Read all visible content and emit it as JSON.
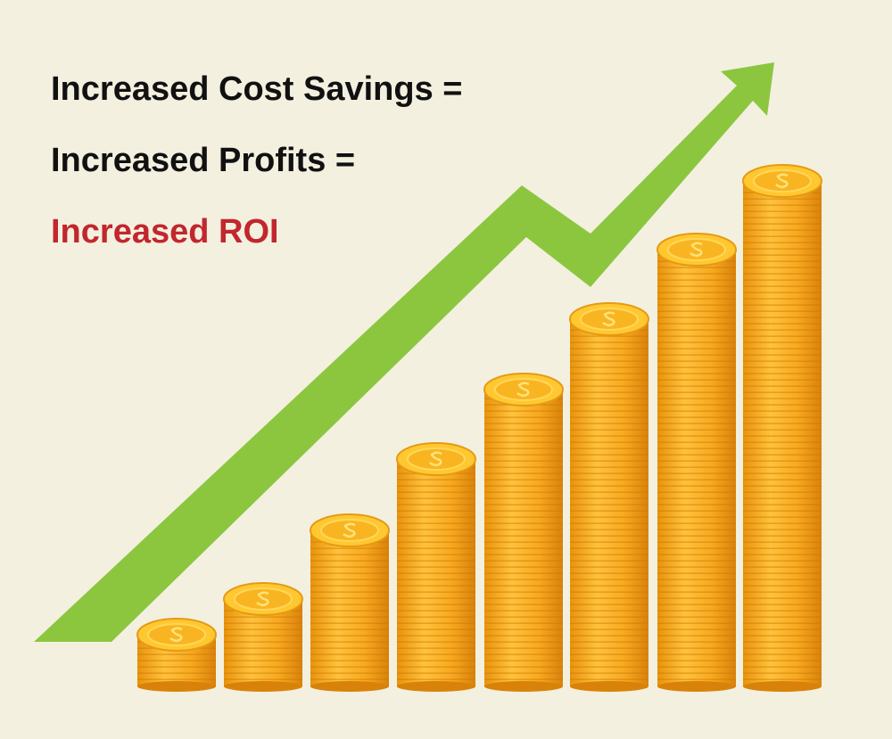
{
  "header": {
    "lines": [
      "Increased Cost Savings =",
      "Increased Profits =",
      "Increased ROI"
    ]
  }
}
